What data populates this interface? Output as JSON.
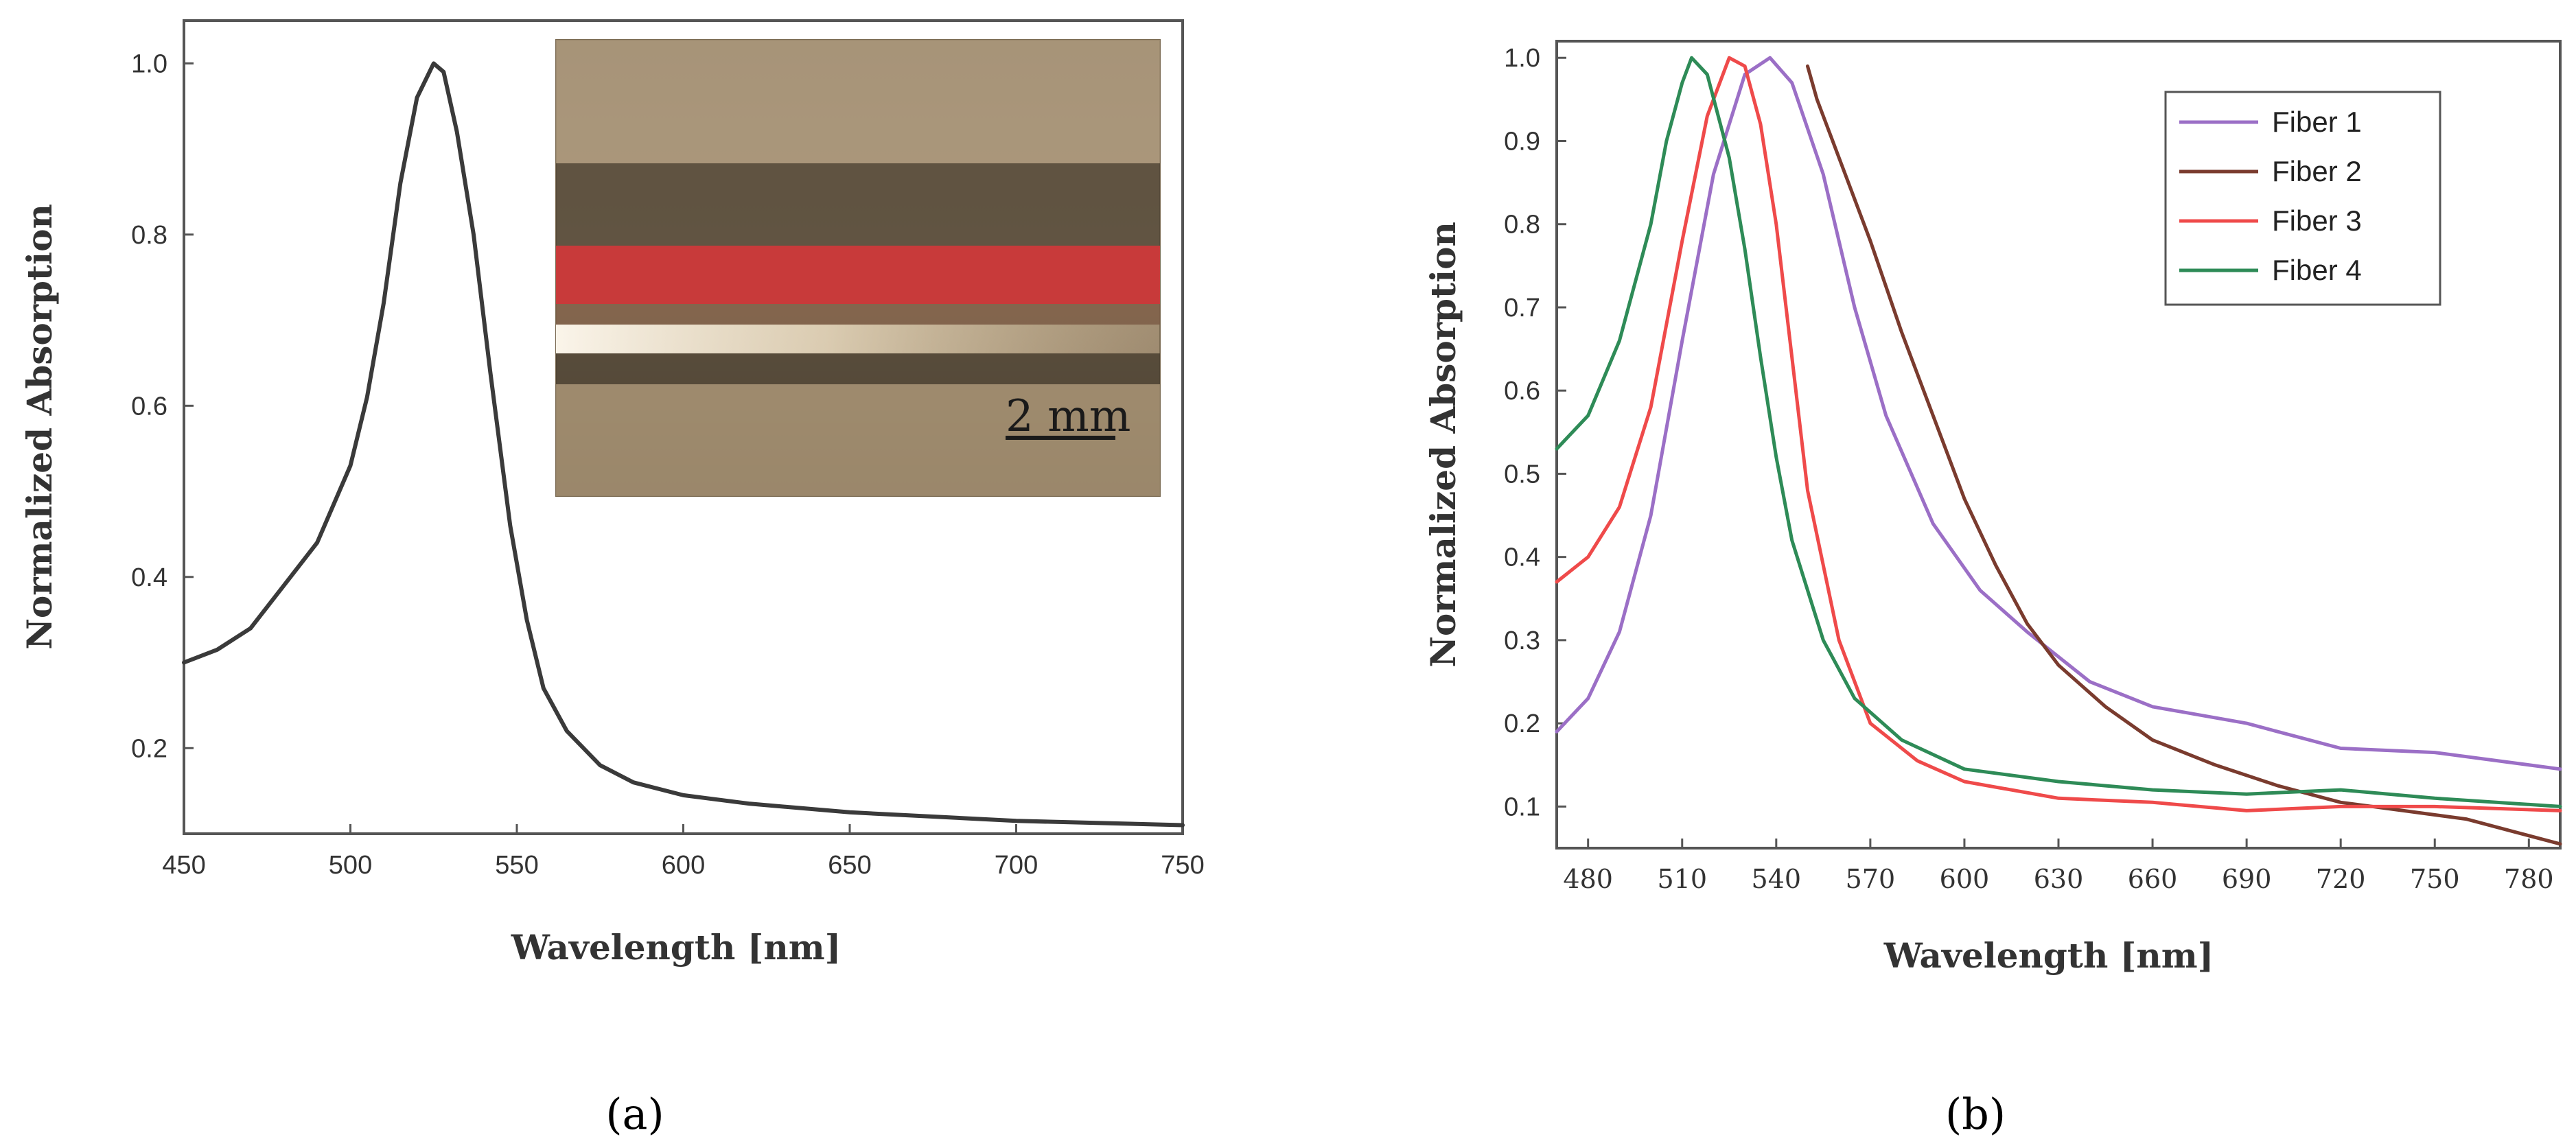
{
  "chart_data": [
    {
      "panel": "a",
      "panel_label": "(a)",
      "type": "line",
      "xlabel": "Wavelength [nm]",
      "ylabel": "Normalized Absorption",
      "xlim": [
        450,
        750
      ],
      "ylim": [
        0.1,
        1.05
      ],
      "xticks": [
        450,
        500,
        550,
        600,
        650,
        700,
        750
      ],
      "yticks": [
        0.2,
        0.4,
        0.6,
        0.8,
        1.0
      ],
      "ytick_labels": [
        "0.2",
        "0.4",
        "0.6",
        "0.8",
        "1.0"
      ],
      "inset_scale_label": "2 mm",
      "series": [
        {
          "name": "Absorption",
          "color": "#3a3a3a",
          "x": [
            450,
            460,
            470,
            480,
            490,
            500,
            505,
            510,
            515,
            520,
            525,
            528,
            532,
            537,
            542,
            548,
            553,
            558,
            565,
            575,
            585,
            600,
            620,
            650,
            700,
            750
          ],
          "y": [
            0.3,
            0.315,
            0.34,
            0.39,
            0.44,
            0.53,
            0.61,
            0.72,
            0.86,
            0.96,
            1.0,
            0.99,
            0.92,
            0.8,
            0.64,
            0.46,
            0.35,
            0.27,
            0.22,
            0.18,
            0.16,
            0.145,
            0.135,
            0.125,
            0.115,
            0.11
          ]
        }
      ]
    },
    {
      "panel": "b",
      "panel_label": "(b)",
      "type": "line",
      "xlabel": "Wavelength [nm]",
      "ylabel": "Normalized Absorption",
      "xlim": [
        470,
        790
      ],
      "ylim": [
        0.05,
        1.02
      ],
      "xticks": [
        480,
        510,
        540,
        570,
        600,
        630,
        660,
        690,
        720,
        750,
        780
      ],
      "yticks": [
        0.1,
        0.2,
        0.3,
        0.4,
        0.5,
        0.6,
        0.7,
        0.8,
        0.9,
        1.0
      ],
      "ytick_labels": [
        "0.1",
        "0.2",
        "0.3",
        "0.4",
        "0.5",
        "0.6",
        "0.7",
        "0.8",
        "0.9",
        "1.0"
      ],
      "legend_position": "top-right",
      "series": [
        {
          "name": "Fiber 1",
          "color": "#9b6fc6",
          "x": [
            470,
            480,
            490,
            500,
            510,
            520,
            530,
            538,
            545,
            555,
            565,
            575,
            590,
            605,
            620,
            640,
            660,
            690,
            700,
            720,
            750,
            790
          ],
          "y": [
            0.19,
            0.23,
            0.31,
            0.45,
            0.66,
            0.86,
            0.98,
            1.0,
            0.97,
            0.86,
            0.7,
            0.57,
            0.44,
            0.36,
            0.31,
            0.25,
            0.22,
            0.2,
            0.19,
            0.17,
            0.165,
            0.145
          ]
        },
        {
          "name": "Fiber 2",
          "color": "#7a3b2e",
          "x": [
            550,
            553,
            560,
            570,
            580,
            590,
            600,
            610,
            620,
            630,
            645,
            660,
            680,
            700,
            720,
            740,
            760,
            775,
            790
          ],
          "y": [
            0.99,
            0.95,
            0.88,
            0.78,
            0.67,
            0.57,
            0.47,
            0.39,
            0.32,
            0.27,
            0.22,
            0.18,
            0.15,
            0.125,
            0.105,
            0.095,
            0.085,
            0.07,
            0.055
          ]
        },
        {
          "name": "Fiber 3",
          "color": "#ef4a4a",
          "x": [
            470,
            480,
            490,
            500,
            510,
            518,
            525,
            530,
            535,
            540,
            545,
            550,
            560,
            570,
            585,
            600,
            630,
            660,
            690,
            720,
            750,
            790
          ],
          "y": [
            0.37,
            0.4,
            0.46,
            0.58,
            0.78,
            0.93,
            1.0,
            0.99,
            0.92,
            0.8,
            0.64,
            0.48,
            0.3,
            0.2,
            0.155,
            0.13,
            0.11,
            0.105,
            0.095,
            0.1,
            0.1,
            0.095
          ]
        },
        {
          "name": "Fiber 4",
          "color": "#2e8b57",
          "x": [
            470,
            480,
            490,
            500,
            505,
            510,
            513,
            518,
            525,
            530,
            535,
            540,
            545,
            555,
            565,
            580,
            600,
            630,
            660,
            690,
            720,
            750,
            790
          ],
          "y": [
            0.53,
            0.57,
            0.66,
            0.8,
            0.9,
            0.97,
            1.0,
            0.98,
            0.88,
            0.77,
            0.64,
            0.52,
            0.42,
            0.3,
            0.23,
            0.18,
            0.145,
            0.13,
            0.12,
            0.115,
            0.12,
            0.11,
            0.1
          ]
        }
      ]
    }
  ]
}
